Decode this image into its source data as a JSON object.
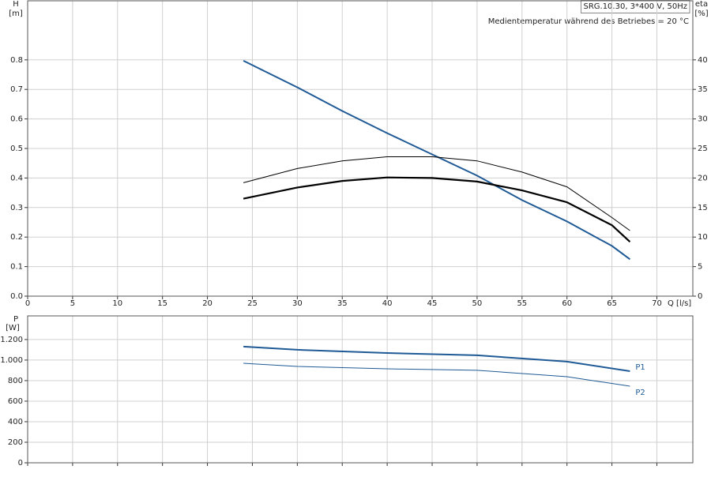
{
  "chart_data": [
    {
      "type": "line",
      "title": "SRG.10.30, 3*400 V, 50Hz",
      "subtitle": "Medientemperatur während des Betriebes = 20 °C",
      "y_label": "H",
      "y_unit": "[m]",
      "y2_label": "eta",
      "y2_unit": "[%]",
      "x_label": "Q [l/s]",
      "x": [
        24,
        30,
        35,
        40,
        45,
        50,
        55,
        60,
        65,
        67
      ],
      "xlim": [
        0,
        74
      ],
      "xticks": [
        0,
        5,
        10,
        15,
        20,
        25,
        30,
        35,
        40,
        45,
        50,
        55,
        60,
        65,
        70
      ],
      "ylim": [
        0,
        1.0
      ],
      "yticks": [
        {
          "value": 0,
          "label": "0.0"
        },
        0.1,
        0.2,
        0.3,
        0.4,
        0.5,
        0.6,
        0.7,
        0.8
      ],
      "y2lim": [
        0,
        50
      ],
      "y2ticks": [
        0,
        5,
        10,
        15,
        20,
        25,
        30,
        35,
        40
      ],
      "grid": true,
      "series": [
        {
          "color": "#1f5a96",
          "width": 2,
          "values": [
            0.797,
            0.707,
            0.627,
            0.552,
            0.48,
            0.408,
            0.325,
            0.253,
            0.17,
            0.125
          ]
        },
        {
          "color": "#000000",
          "width": 1,
          "axis": "y2",
          "values": [
            19.2,
            21.6,
            22.9,
            23.6,
            23.6,
            22.9,
            21.0,
            18.5,
            13.3,
            11.1
          ]
        },
        {
          "color": "#000000",
          "width": 2.2,
          "axis": "y2",
          "values": [
            16.5,
            18.4,
            19.5,
            20.1,
            20.0,
            19.4,
            17.9,
            15.9,
            12.0,
            9.2
          ]
        }
      ]
    },
    {
      "type": "line",
      "y_label": "P",
      "y_unit": "[W]",
      "x": [
        24,
        30,
        40,
        50,
        60,
        67
      ],
      "ylim": [
        0,
        1430
      ],
      "yticks": [
        0,
        200,
        400,
        600,
        800,
        {
          "value": 1000,
          "label": "1.000"
        },
        {
          "value": 1200,
          "label": "1.200"
        }
      ],
      "grid": true,
      "series": [
        {
          "name": "P1",
          "color": "#1f5a96",
          "width": 2,
          "values": [
            1131,
            1100,
            1069,
            1046,
            985,
            892
          ]
        },
        {
          "name": "P2",
          "color": "#1f5a96",
          "width": 1,
          "values": [
            969,
            938,
            915,
            900,
            838,
            746
          ]
        }
      ]
    }
  ]
}
